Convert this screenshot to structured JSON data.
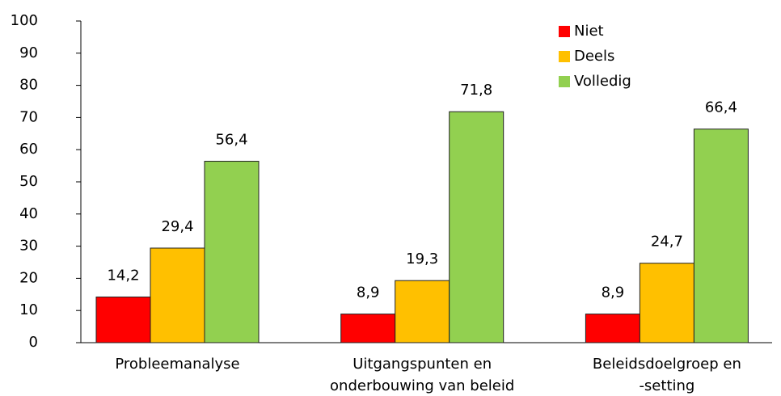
{
  "chart_data": {
    "type": "bar",
    "categories": [
      "Probleemanalyse",
      "Uitgangspunten en\nonderbouwing van beleid",
      "Beleidsdoelgroep en\n-setting"
    ],
    "series": [
      {
        "name": "Niet",
        "color": "#ff0000",
        "values": [
          14.2,
          8.9,
          8.9
        ],
        "value_labels": [
          "14,2",
          "8,9",
          "8,9"
        ]
      },
      {
        "name": "Deels",
        "color": "#ffc000",
        "values": [
          29.4,
          19.3,
          24.7
        ],
        "value_labels": [
          "29,4",
          "19,3",
          "24,7"
        ]
      },
      {
        "name": "Volledig",
        "color": "#92d050",
        "values": [
          56.4,
          71.8,
          66.4
        ],
        "value_labels": [
          "56,4",
          "71,8",
          "66,4"
        ]
      }
    ],
    "ylim": [
      0,
      100
    ],
    "yticks": [
      0,
      10,
      20,
      30,
      40,
      50,
      60,
      70,
      80,
      90,
      100
    ],
    "grid": false,
    "legend": "top-right"
  }
}
